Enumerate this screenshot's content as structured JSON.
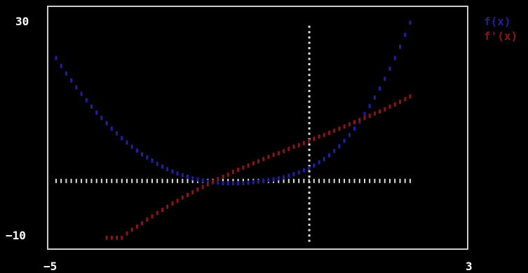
{
  "chart_data": {
    "type": "scatter",
    "xlim": [
      -5,
      3
    ],
    "ylim": [
      -12,
      31
    ],
    "x_tick_labels": [
      "−5",
      "3"
    ],
    "y_tick_labels": [
      "30",
      "−10"
    ],
    "x_ticks": [
      -5,
      3
    ],
    "y_ticks": [
      30,
      -10
    ],
    "legend_position": "top-right",
    "grid": false,
    "axis_color": "#cccccc",
    "series": [
      {
        "name": "f(x)",
        "color": "#1f1fa0",
        "points": [
          [
            -5.0,
            23.1
          ],
          [
            -4.9,
            21.6
          ],
          [
            -4.8,
            20.2
          ],
          [
            -4.7,
            18.9
          ],
          [
            -4.6,
            17.6
          ],
          [
            -4.5,
            16.4
          ],
          [
            -4.4,
            15.2
          ],
          [
            -4.3,
            14.0
          ],
          [
            -4.2,
            12.9
          ],
          [
            -4.1,
            11.9
          ],
          [
            -4.0,
            10.9
          ],
          [
            -3.9,
            9.9
          ],
          [
            -3.8,
            9.0
          ],
          [
            -3.7,
            8.1
          ],
          [
            -3.6,
            7.3
          ],
          [
            -3.5,
            6.5
          ],
          [
            -3.4,
            5.8
          ],
          [
            -3.3,
            5.1
          ],
          [
            -3.2,
            4.5
          ],
          [
            -3.1,
            3.9
          ],
          [
            -3.0,
            3.3
          ],
          [
            -2.9,
            2.8
          ],
          [
            -2.8,
            2.3
          ],
          [
            -2.7,
            1.9
          ],
          [
            -2.6,
            1.5
          ],
          [
            -2.5,
            1.2
          ],
          [
            -2.4,
            0.9
          ],
          [
            -2.3,
            0.6
          ],
          [
            -2.2,
            0.4
          ],
          [
            -2.1,
            0.2
          ],
          [
            -2.0,
            0.0
          ],
          [
            -1.9,
            -0.1
          ],
          [
            -1.8,
            -0.2
          ],
          [
            -1.7,
            -0.3
          ],
          [
            -1.6,
            -0.3
          ],
          [
            -1.5,
            -0.3
          ],
          [
            -1.4,
            -0.3
          ],
          [
            -1.3,
            -0.3
          ],
          [
            -1.2,
            -0.2
          ],
          [
            -1.1,
            -0.1
          ],
          [
            -1.0,
            0.0
          ],
          [
            -0.9,
            0.1
          ],
          [
            -0.8,
            0.3
          ],
          [
            -0.7,
            0.4
          ],
          [
            -0.6,
            0.6
          ],
          [
            -0.5,
            0.8
          ],
          [
            -0.4,
            1.1
          ],
          [
            -0.3,
            1.4
          ],
          [
            -0.2,
            1.7
          ],
          [
            -0.1,
            2.1
          ],
          [
            0.0,
            2.5
          ],
          [
            0.1,
            3.0
          ],
          [
            0.2,
            3.6
          ],
          [
            0.3,
            4.2
          ],
          [
            0.4,
            4.9
          ],
          [
            0.5,
            5.7
          ],
          [
            0.6,
            6.6
          ],
          [
            0.7,
            7.6
          ],
          [
            0.8,
            8.7
          ],
          [
            0.9,
            9.9
          ],
          [
            1.0,
            11.2
          ],
          [
            1.1,
            12.6
          ],
          [
            1.2,
            14.1
          ],
          [
            1.3,
            15.7
          ],
          [
            1.4,
            17.4
          ],
          [
            1.5,
            19.2
          ],
          [
            1.6,
            21.1
          ],
          [
            1.7,
            23.1
          ],
          [
            1.8,
            25.2
          ],
          [
            1.9,
            27.4
          ],
          [
            2.0,
            29.7
          ]
        ]
      },
      {
        "name": "f'(x)",
        "color": "#8b1515",
        "points": [
          [
            -4.0,
            -10.5
          ],
          [
            -3.9,
            -10.5
          ],
          [
            -3.8,
            -10.5
          ],
          [
            -3.7,
            -10.5
          ],
          [
            -3.6,
            -9.7
          ],
          [
            -3.5,
            -9.0
          ],
          [
            -3.4,
            -8.4
          ],
          [
            -3.3,
            -7.8
          ],
          [
            -3.2,
            -7.1
          ],
          [
            -3.1,
            -6.5
          ],
          [
            -3.0,
            -5.9
          ],
          [
            -2.9,
            -5.3
          ],
          [
            -2.8,
            -4.7
          ],
          [
            -2.7,
            -4.1
          ],
          [
            -2.6,
            -3.6
          ],
          [
            -2.5,
            -3.0
          ],
          [
            -2.4,
            -2.5
          ],
          [
            -2.3,
            -2.0
          ],
          [
            -2.2,
            -1.5
          ],
          [
            -2.1,
            -1.0
          ],
          [
            -2.0,
            -0.5
          ],
          [
            -1.9,
            0.0
          ],
          [
            -1.8,
            0.5
          ],
          [
            -1.7,
            0.9
          ],
          [
            -1.6,
            1.3
          ],
          [
            -1.5,
            1.8
          ],
          [
            -1.4,
            2.2
          ],
          [
            -1.3,
            2.6
          ],
          [
            -1.2,
            3.0
          ],
          [
            -1.1,
            3.4
          ],
          [
            -1.0,
            3.8
          ],
          [
            -0.9,
            4.2
          ],
          [
            -0.8,
            4.6
          ],
          [
            -0.7,
            5.0
          ],
          [
            -0.6,
            5.3
          ],
          [
            -0.5,
            5.7
          ],
          [
            -0.4,
            6.1
          ],
          [
            -0.3,
            6.5
          ],
          [
            -0.2,
            6.8
          ],
          [
            -0.1,
            7.2
          ],
          [
            0.0,
            7.6
          ],
          [
            0.1,
            8.0
          ],
          [
            0.2,
            8.4
          ],
          [
            0.3,
            8.7
          ],
          [
            0.4,
            9.1
          ],
          [
            0.5,
            9.5
          ],
          [
            0.6,
            9.9
          ],
          [
            0.7,
            10.3
          ],
          [
            0.8,
            10.7
          ],
          [
            0.9,
            11.1
          ],
          [
            1.0,
            11.5
          ],
          [
            1.1,
            11.9
          ],
          [
            1.2,
            12.3
          ],
          [
            1.3,
            12.7
          ],
          [
            1.4,
            13.1
          ],
          [
            1.5,
            13.5
          ],
          [
            1.6,
            14.0
          ],
          [
            1.7,
            14.4
          ],
          [
            1.8,
            14.9
          ],
          [
            1.9,
            15.4
          ],
          [
            2.0,
            15.9
          ]
        ]
      }
    ],
    "reference_lines": {
      "color": "#e0e0e0",
      "horizontal_y": 0,
      "horizontal_x_range": [
        -5,
        2.0
      ],
      "vertical_x": 0,
      "vertical_y_range": [
        -11,
        29.7
      ]
    }
  }
}
